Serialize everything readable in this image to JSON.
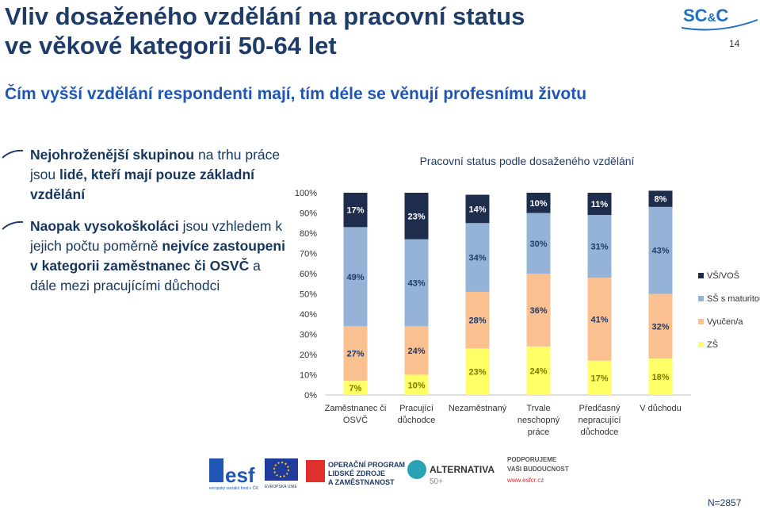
{
  "title_line1": "Vliv dosaženého vzdělání na pracovní status",
  "title_line2": "ve věkové kategorii 50-64 let",
  "subtitle": "Čím vyšší vzdělání respondenti mají, tím déle se věnují profesnímu životu",
  "page_number": "14",
  "logo": {
    "text_sc": "SC",
    "text_amp": "&",
    "text_c": "C",
    "color": "#1f6fc5"
  },
  "bullets": [
    {
      "parts": [
        {
          "text": "Nejohroženější skupinou",
          "bold": true
        },
        {
          "text": " na trhu práce jsou ",
          "bold": false
        },
        {
          "text": "lidé, kteří mají pouze základní vzdělání",
          "bold": true
        }
      ]
    },
    {
      "parts": [
        {
          "text": "Naopak vysokoškoláci",
          "bold": true
        },
        {
          "text": " jsou vzhledem k jejich počtu poměrně ",
          "bold": false
        },
        {
          "text": "nejvíce zastoupeni v kategorii zaměstnanec či OSVČ",
          "bold": true
        },
        {
          "text": " a dále mezi pracujícími důchodci",
          "bold": false
        }
      ]
    }
  ],
  "chart_data": {
    "type": "bar",
    "stacked": true,
    "title": "Pracovní status podle dosaženého vzdělání",
    "categories": [
      [
        "Zaměstnanec či",
        "OSVČ"
      ],
      [
        "Pracující",
        "důchodce"
      ],
      [
        "Nezaměstnaný"
      ],
      [
        "Trvale",
        "neschopný",
        "práce"
      ],
      [
        "Předčasný",
        "nepracující",
        "důchodce"
      ],
      [
        "V důchodu"
      ]
    ],
    "ylim": [
      0,
      100
    ],
    "yticks": [
      "0%",
      "10%",
      "20%",
      "30%",
      "40%",
      "50%",
      "60%",
      "70%",
      "80%",
      "90%",
      "100%"
    ],
    "series": [
      {
        "name": "ZŠ",
        "color": "#ffff66",
        "values": [
          7,
          10,
          23,
          24,
          17,
          18
        ]
      },
      {
        "name": "Vyučen/a",
        "color": "#fac090",
        "values": [
          27,
          24,
          28,
          36,
          41,
          32
        ]
      },
      {
        "name": "SŠ s maturitou",
        "color": "#95b3d7",
        "values": [
          49,
          43,
          34,
          30,
          31,
          43
        ]
      },
      {
        "name": "VŠ/VOŠ",
        "color": "#1f2d4d",
        "values": [
          17,
          23,
          14,
          10,
          11,
          8
        ]
      }
    ],
    "legend_order": [
      "VŠ/VOŠ",
      "SŠ s maturitou",
      "Vyučen/a",
      "ZŠ"
    ],
    "legend_position": "right",
    "grid": false
  },
  "footer": {
    "esf": "esf",
    "esf_small": "evropský sociální fond v ČR",
    "eu_small": "EVROPSKÁ UNIE",
    "op_line1": "OPERAČNÍ PROGRAM",
    "op_line2": "LIDSKÉ ZDROJE",
    "op_line3": "A ZAMĚSTNANOST",
    "alt_name": "ALTERNATIVA",
    "alt_sub": "50+",
    "support_line1": "PODPORUJEME",
    "support_line2": "VAŠI BUDOUCNOST",
    "support_url": "www.esfcr.cz"
  },
  "n_label": "N=2857"
}
